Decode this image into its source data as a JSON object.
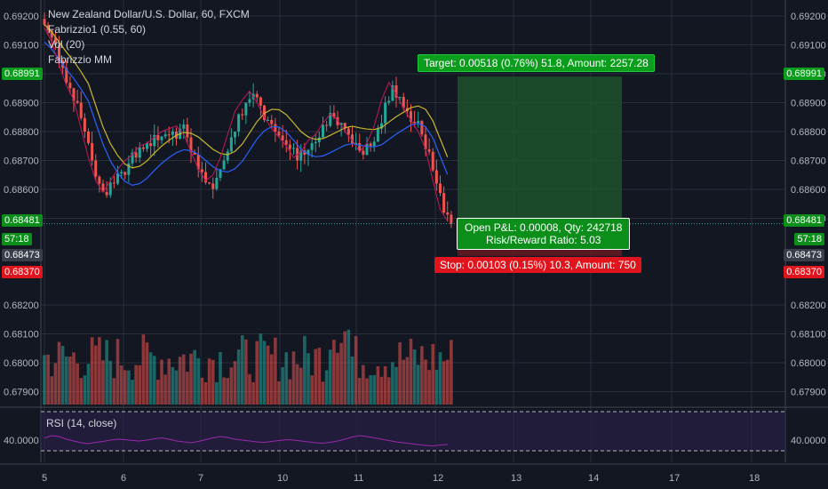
{
  "legend": {
    "title": "New Zealand Dollar/U.S. Dollar, 60, FXCM",
    "indicator1": "Fabrizzio1 (0.55, 60)",
    "indicator2": "Vol (20)",
    "indicator3": "Fabrizzio MM"
  },
  "rsi_label": "RSI (14, close)",
  "annotations": {
    "target": "Target: 0.00518 (0.76%) 51.8, Amount: 2257.28",
    "pnl_line1": "Open P&L: 0.00008, Qty: 242718",
    "pnl_line2": "Risk/Reward Ratio: 5.03",
    "stop": "Stop: 0.00103 (0.15%) 10.3, Amount: 750"
  },
  "tags": {
    "target_price": "0.68991",
    "current_price": "0.68481",
    "countdown": "57:18",
    "entry_price": "0.68473",
    "stop_price": "0.68370",
    "rsi_value": "40.0000"
  },
  "colors": {
    "background": "#131722",
    "bull": "#26a69a",
    "bear": "#ef5350",
    "profit_zone": "#1e5a2b",
    "loss_zone": "#6b1a22",
    "rsi_line": "#9c27b0",
    "ema_yellow": "#c9b82c",
    "blue_line": "#2962ff"
  },
  "chart_data": {
    "type": "candlestick",
    "title": "New Zealand Dollar/U.S. Dollar, 60, FXCM",
    "price_ticks": [
      "0.69200",
      "0.69100",
      "0.69000",
      "0.68900",
      "0.68800",
      "0.68700",
      "0.68600",
      "0.68500",
      "0.68200",
      "0.68100",
      "0.68000",
      "0.67900"
    ],
    "x_ticks": [
      "5",
      "6",
      "7",
      "10",
      "11",
      "12",
      "13",
      "14",
      "17",
      "18"
    ],
    "ylim": [
      0.6786,
      0.6922
    ],
    "price_series_close": [
      0.6915,
      0.691,
      0.6902,
      0.6895,
      0.689,
      0.688,
      0.687,
      0.6862,
      0.6858,
      0.6862,
      0.6866,
      0.6869,
      0.6871,
      0.6874,
      0.6875,
      0.6877,
      0.6879,
      0.688,
      0.6881,
      0.6878,
      0.6872,
      0.6866,
      0.6862,
      0.6864,
      0.687,
      0.6878,
      0.6886,
      0.689,
      0.6893,
      0.6889,
      0.6884,
      0.688,
      0.6877,
      0.6874,
      0.687,
      0.6872,
      0.6876,
      0.6878,
      0.6882,
      0.6885,
      0.6883,
      0.6879,
      0.6876,
      0.6872,
      0.6875,
      0.6881,
      0.689,
      0.6896,
      0.6892,
      0.6887,
      0.6883,
      0.6879,
      0.6873,
      0.6862,
      0.6852,
      0.6848
    ],
    "current_price": 0.68481,
    "entry": 0.68473,
    "target": 0.68991,
    "stop": 0.6837,
    "rsi": {
      "level": 40.0,
      "series": [
        55,
        60,
        58,
        52,
        48,
        44,
        42,
        45,
        47,
        50,
        52,
        51,
        49,
        48,
        50,
        53,
        55,
        52,
        48,
        46,
        44,
        47,
        51,
        55,
        58,
        56,
        52,
        50,
        48,
        46,
        45,
        47,
        49,
        51,
        50,
        48,
        46,
        44,
        43,
        45,
        48,
        52,
        57,
        60,
        58,
        55,
        52,
        49,
        46,
        44,
        42,
        40,
        38,
        37,
        39,
        40
      ]
    }
  }
}
